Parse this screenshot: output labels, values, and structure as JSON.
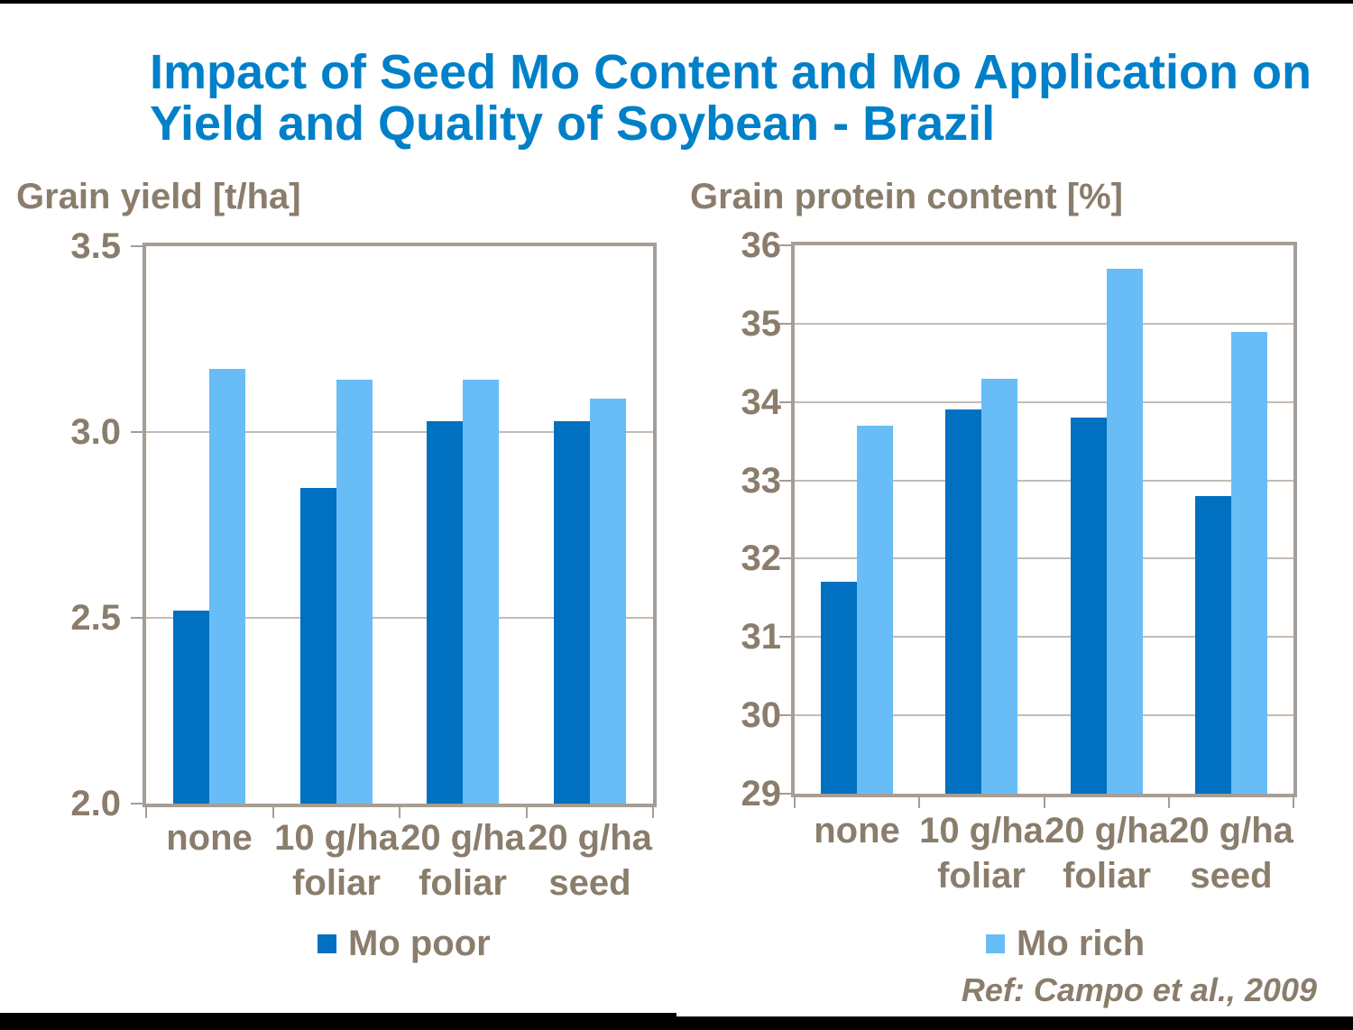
{
  "page": {
    "title_line1": "Impact of Seed Mo Content and Mo Application on",
    "title_line2": "Yield and Quality of Soybean - Brazil",
    "reference": "Ref: Campo et al., 2009"
  },
  "colors": {
    "mo_poor": "#0070C0",
    "mo_rich": "#68BDF6",
    "title": "#0080C8",
    "text": "#8A7D6B",
    "frame": "#A69D94",
    "grid": "#C4BCB4",
    "strip": "#000000"
  },
  "chart_data": [
    {
      "type": "bar",
      "title": "Grain yield [t/ha]",
      "categories": [
        "none",
        "10 g/ha\nfoliar",
        "20 g/ha\nfoliar",
        "20 g/ha\nseed"
      ],
      "series": [
        {
          "name": "Mo poor",
          "values": [
            2.52,
            2.85,
            3.03,
            3.03
          ]
        },
        {
          "name": "Mo rich",
          "values": [
            3.17,
            3.14,
            3.14,
            3.09
          ]
        }
      ],
      "ylim": [
        2.0,
        3.5
      ],
      "yticks": [
        {
          "value": 3.5,
          "label": "3.5"
        },
        {
          "value": 3.0,
          "label": "3.0"
        },
        {
          "value": 2.5,
          "label": "2.5"
        },
        {
          "value": 2.0,
          "label": "2.0"
        }
      ],
      "grid": true,
      "legend_position": "bottom",
      "legend_visible_series": "Mo poor"
    },
    {
      "type": "bar",
      "title": "Grain protein content [%]",
      "categories": [
        "none",
        "10 g/ha\nfoliar",
        "20 g/ha\nfoliar",
        "20 g/ha\nseed"
      ],
      "series": [
        {
          "name": "Mo poor",
          "values": [
            31.7,
            33.9,
            33.8,
            32.8
          ]
        },
        {
          "name": "Mo rich",
          "values": [
            33.7,
            34.3,
            35.7,
            34.9
          ]
        }
      ],
      "ylim": [
        29,
        36
      ],
      "yticks": [
        {
          "value": 36,
          "label": "36"
        },
        {
          "value": 35,
          "label": "35"
        },
        {
          "value": 34,
          "label": "34"
        },
        {
          "value": 33,
          "label": "33"
        },
        {
          "value": 32,
          "label": "32"
        },
        {
          "value": 31,
          "label": "31"
        },
        {
          "value": 30,
          "label": "30"
        },
        {
          "value": 29,
          "label": "29"
        }
      ],
      "grid": true,
      "legend_position": "bottom",
      "legend_visible_series": "Mo rich"
    }
  ]
}
